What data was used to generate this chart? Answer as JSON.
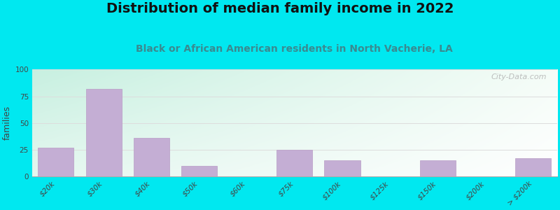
{
  "title": "Distribution of median family income in 2022",
  "subtitle": "Black or African American residents in North Vacherie, LA",
  "ylabel": "families",
  "categories": [
    "$20k",
    "$30k",
    "$40k",
    "$50k",
    "$60k",
    "$75k",
    "$100k",
    "$125k",
    "$150k",
    "$200k",
    "> $200k"
  ],
  "values": [
    27,
    82,
    36,
    10,
    0,
    25,
    15,
    0,
    15,
    0,
    17
  ],
  "bar_color": "#c4aed4",
  "bar_edgecolor": "#b89cc5",
  "ylim": [
    0,
    100
  ],
  "yticks": [
    0,
    25,
    50,
    75,
    100
  ],
  "background_outer": "#00e8f0",
  "grid_color": "#dddddd",
  "title_fontsize": 14,
  "subtitle_fontsize": 10,
  "ylabel_fontsize": 9,
  "tick_fontsize": 7.5,
  "watermark": "City-Data.com"
}
